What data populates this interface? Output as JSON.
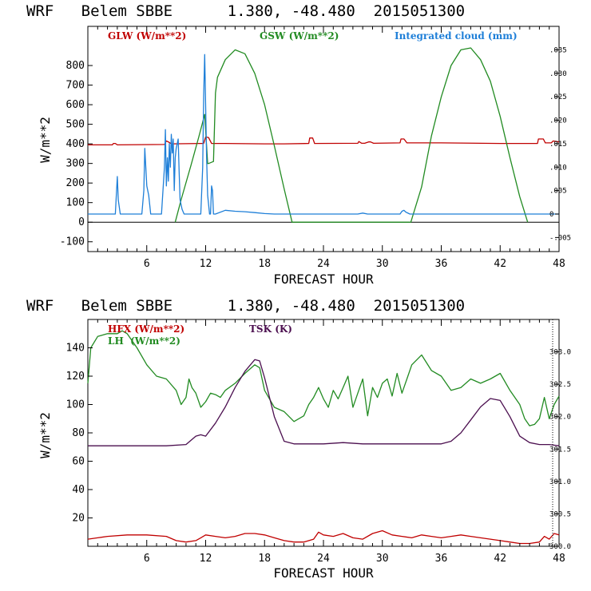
{
  "chart_data": [
    {
      "type": "line",
      "title": "WRF   Belem SBBE      1.380, -48.480  2015051300",
      "xlabel": "FORECAST HOUR",
      "ylabel": "W/m**2",
      "xlim": [
        0,
        48
      ],
      "ylim": [
        -150,
        1000
      ],
      "y2lim": [
        -0.008,
        0.04
      ],
      "x_ticks": [
        "6",
        "12",
        "18",
        "24",
        "30",
        "36",
        "42",
        "48"
      ],
      "y_ticks": [
        "800",
        "700",
        "600",
        "500",
        "400",
        "300",
        "200",
        "100",
        "0",
        "-100"
      ],
      "y2_ticks": [
        ".035",
        ".030",
        ".025",
        ".020",
        ".015",
        ".010",
        ".005",
        "0",
        "-.005"
      ],
      "legend": [
        "GLW (W/m**2)",
        "GSW (W/m**2)",
        "Integrated cloud (mm)"
      ],
      "colors": {
        "GLW": "#c00000",
        "GSW": "#228b22",
        "Integrated cloud": "#1e7fd8"
      },
      "series": [
        {
          "name": "GLW (W/m**2)",
          "axis": "left",
          "x": [
            0,
            2.5,
            2.6,
            2.8,
            3.0,
            7.8,
            8.0,
            8.2,
            8.5,
            11.5,
            11.8,
            12.0,
            12.3,
            12.6,
            14,
            18,
            20,
            22.5,
            22.6,
            22.9,
            23.1,
            27.5,
            27.6,
            27.9,
            28.2,
            28.6,
            28.8,
            29.1,
            31.8,
            31.9,
            32.2,
            32.5,
            36,
            42,
            45.8,
            45.9,
            46.4,
            46.6,
            47.2,
            47.4,
            48
          ],
          "values": [
            395,
            395,
            402,
            402,
            395,
            397,
            415,
            410,
            400,
            402,
            402,
            435,
            432,
            402,
            402,
            400,
            400,
            402,
            430,
            430,
            402,
            403,
            412,
            403,
            403,
            410,
            410,
            403,
            405,
            425,
            425,
            405,
            405,
            402,
            402,
            425,
            425,
            405,
            405,
            415,
            410
          ]
        },
        {
          "name": "GSW (W/m**2)",
          "axis": "left",
          "x": [
            8.9,
            9.5,
            10.5,
            11.3,
            11.9,
            12.2,
            12.3,
            12.8,
            13.0,
            13.2,
            14,
            15,
            16,
            17,
            18,
            19,
            20,
            20.8,
            32.9,
            34,
            35,
            36,
            37,
            38,
            39,
            40,
            41,
            42,
            43,
            44,
            44.8
          ],
          "values": [
            0,
            115,
            290,
            435,
            550,
            300,
            300,
            310,
            660,
            740,
            830,
            880,
            860,
            760,
            600,
            390,
            170,
            0,
            0,
            180,
            440,
            640,
            800,
            880,
            890,
            830,
            720,
            540,
            330,
            130,
            0
          ]
        },
        {
          "name": "Integrated cloud (mm)",
          "axis": "right",
          "x": [
            0,
            2.8,
            3.0,
            3.1,
            3.3,
            5.5,
            5.7,
            5.8,
            6.0,
            6.2,
            6.4,
            7.5,
            7.8,
            7.9,
            8.0,
            8.1,
            8.2,
            8.3,
            8.4,
            8.5,
            8.6,
            8.7,
            8.8,
            8.9,
            9.0,
            9.1,
            9.2,
            9.3,
            9.4,
            9.6,
            9.8,
            11.5,
            11.7,
            11.8,
            11.9,
            12.0,
            12.1,
            12.2,
            12.4,
            12.5,
            12.6,
            12.7,
            12.8,
            13,
            14,
            15,
            16,
            17,
            18,
            19,
            20,
            21,
            27.5,
            28,
            28.5,
            31.8,
            32.0,
            32.2,
            32.4,
            32.8,
            48
          ],
          "values": [
            0,
            0,
            0.008,
            0.003,
            0,
            0,
            0.005,
            0.014,
            0.006,
            0.004,
            0,
            0,
            0.01,
            0.018,
            0.006,
            0.012,
            0.007,
            0.015,
            0.01,
            0.017,
            0.013,
            0.016,
            0.005,
            0.012,
            0.014,
            0.015,
            0.016,
            0.009,
            0.003,
            0.001,
            0,
            0,
            0.01,
            0.025,
            0.034,
            0.023,
            0.012,
            0.004,
            0,
            0,
            0.006,
            0.005,
            0,
            0,
            0.0008,
            0.0006,
            0.0005,
            0.0003,
            0.0001,
            0,
            0,
            0,
            0,
            0.0002,
            0,
            0,
            0.0006,
            0.0008,
            0.0004,
            0,
            0
          ]
        }
      ]
    },
    {
      "type": "line",
      "title": "WRF   Belem SBBE      1.380, -48.480  2015051300",
      "xlabel": "FORECAST HOUR",
      "ylabel": "W/m**2",
      "xlim": [
        0,
        48
      ],
      "ylim": [
        0,
        160
      ],
      "y2lim": [
        300.0,
        303.5
      ],
      "x_ticks": [
        "6",
        "12",
        "18",
        "24",
        "30",
        "36",
        "42",
        "48"
      ],
      "y_ticks": [
        "140",
        "120",
        "100",
        "80",
        "60",
        "40",
        "20"
      ],
      "y2_ticks": [
        "303.0",
        "302.5",
        "302.0",
        "301.5",
        "301.0",
        "300.5",
        "300.0"
      ],
      "legend": [
        "HFX (W/m**2)",
        "LH  (W/m**2)",
        "TSK (K)"
      ],
      "colors": {
        "HFX": "#c00000",
        "LH": "#228b22",
        "TSK": "#4b0f4f"
      },
      "series": [
        {
          "name": "HFX (W/m**2)",
          "axis": "left",
          "x": [
            0,
            1,
            2,
            4,
            6,
            8,
            9,
            10,
            11,
            11.5,
            12,
            13,
            14,
            15,
            16,
            17,
            18,
            19,
            20,
            21,
            22,
            23,
            23.5,
            24,
            25,
            26,
            27,
            28,
            29,
            30,
            31,
            32,
            33,
            34,
            35,
            36,
            37,
            38,
            39,
            40,
            41,
            42,
            43,
            44,
            45,
            46,
            46.5,
            47,
            47.5,
            48
          ],
          "values": [
            5,
            6,
            7,
            8,
            8,
            7,
            4,
            3,
            4,
            6,
            8,
            7,
            6,
            7,
            9,
            9,
            8,
            6,
            4,
            3,
            3,
            5,
            10,
            8,
            7,
            9,
            6,
            5,
            9,
            11,
            8,
            7,
            6,
            8,
            7,
            6,
            7,
            8,
            7,
            6,
            5,
            4,
            3,
            2,
            2,
            3,
            7,
            5,
            9,
            8
          ]
        },
        {
          "name": "LH  (W/m**2)",
          "axis": "left",
          "x": [
            0,
            0.3,
            1,
            2,
            3,
            3.5,
            4,
            5,
            6,
            7,
            8,
            9,
            9.5,
            10,
            10.3,
            10.6,
            11,
            11.5,
            12,
            12.5,
            13,
            13.5,
            14,
            15,
            16,
            17,
            17.5,
            18,
            19,
            20,
            21,
            22,
            22.5,
            23,
            23.5,
            24,
            24.5,
            25,
            25.5,
            26,
            26.5,
            27,
            27.5,
            28,
            28.5,
            29,
            29.5,
            30,
            30.5,
            31,
            31.5,
            32,
            32.5,
            33,
            34,
            35,
            36,
            37,
            38,
            39,
            40,
            41,
            42,
            43,
            44,
            44.5,
            45,
            45.5,
            46,
            46.5,
            47,
            47.5,
            48
          ],
          "values": [
            115,
            140,
            148,
            150,
            150,
            152,
            150,
            140,
            128,
            120,
            118,
            110,
            100,
            105,
            118,
            112,
            108,
            98,
            102,
            108,
            107,
            105,
            110,
            115,
            122,
            128,
            126,
            110,
            98,
            95,
            88,
            92,
            100,
            105,
            112,
            104,
            98,
            110,
            104,
            112,
            120,
            98,
            108,
            118,
            92,
            112,
            105,
            115,
            118,
            106,
            122,
            108,
            118,
            128,
            135,
            124,
            120,
            110,
            112,
            118,
            115,
            118,
            122,
            110,
            100,
            90,
            85,
            86,
            90,
            105,
            90,
            100,
            106
          ]
        },
        {
          "name": "TSK (K)",
          "axis": "right",
          "x": [
            0,
            2,
            4,
            6,
            8,
            10,
            11,
            11.5,
            12,
            13,
            14,
            15,
            16,
            17,
            17.5,
            18,
            19,
            20,
            21,
            22,
            24,
            26,
            28,
            30,
            32,
            34,
            36,
            37,
            38,
            39,
            40,
            41,
            42,
            43,
            44,
            45,
            46,
            47,
            48
          ],
          "values": [
            301.55,
            301.55,
            301.55,
            301.55,
            301.55,
            301.57,
            301.7,
            301.72,
            301.7,
            301.9,
            302.15,
            302.45,
            302.7,
            302.88,
            302.86,
            302.6,
            302.0,
            301.62,
            301.58,
            301.58,
            301.58,
            301.6,
            301.58,
            301.58,
            301.58,
            301.58,
            301.58,
            301.62,
            301.75,
            301.95,
            302.15,
            302.28,
            302.25,
            302.0,
            301.7,
            301.6,
            301.57,
            301.57,
            301.55
          ]
        }
      ]
    }
  ]
}
